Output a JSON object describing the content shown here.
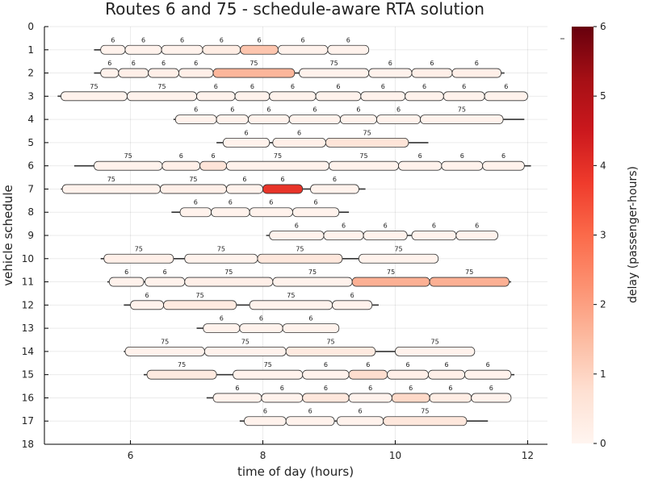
{
  "chart_data": {
    "type": "gantt",
    "title": "Routes 6 and 75 - schedule-aware RTA solution",
    "xlabel": "time of day (hours)",
    "ylabel": "vehicle schedule",
    "colorbar_label": "delay (passenger-hours)",
    "xlim": [
      4.7,
      12.3
    ],
    "ylim": [
      0,
      18
    ],
    "x_ticks": [
      6,
      8,
      10,
      12
    ],
    "y_ticks": [
      0,
      1,
      2,
      3,
      4,
      5,
      6,
      7,
      8,
      9,
      10,
      11,
      12,
      13,
      14,
      15,
      16,
      17,
      18
    ],
    "color_range": [
      0,
      6
    ],
    "color_ticks": [
      0,
      1,
      2,
      3,
      4,
      5,
      6
    ],
    "colormap": [
      "#fff5f0",
      "#fee0d2",
      "#fcbba1",
      "#fc9272",
      "#fb6a4a",
      "#ef3b2c",
      "#cb181d",
      "#a50f15",
      "#67000d"
    ],
    "grid": true,
    "schedules": [
      {
        "vehicle": 1,
        "line": [
          5.45,
          9.6
        ],
        "trips": [
          {
            "route": "6",
            "start": 5.55,
            "end": 5.92,
            "delay": 0.1
          },
          {
            "route": "6",
            "start": 5.92,
            "end": 6.47,
            "delay": 0.1
          },
          {
            "route": "6",
            "start": 6.47,
            "end": 7.09,
            "delay": 0.1
          },
          {
            "route": "6",
            "start": 7.09,
            "end": 7.66,
            "delay": 0.3
          },
          {
            "route": "6",
            "start": 7.66,
            "end": 8.23,
            "delay": 1.3
          },
          {
            "route": "6",
            "start": 8.23,
            "end": 8.98,
            "delay": 0.1
          },
          {
            "route": "6",
            "start": 8.98,
            "end": 9.6,
            "delay": 0.1
          }
        ]
      },
      {
        "vehicle": 2,
        "line": [
          5.45,
          11.65
        ],
        "trips": [
          {
            "route": "6",
            "start": 5.55,
            "end": 5.82,
            "delay": 0.1
          },
          {
            "route": "6",
            "start": 5.82,
            "end": 6.27,
            "delay": 0.2
          },
          {
            "route": "6",
            "start": 6.27,
            "end": 6.73,
            "delay": 0.2
          },
          {
            "route": "6",
            "start": 6.73,
            "end": 7.25,
            "delay": 0.2
          },
          {
            "route": "75",
            "start": 7.25,
            "end": 8.48,
            "delay": 1.6
          },
          {
            "route": "75",
            "start": 8.55,
            "end": 9.6,
            "delay": 0.1
          },
          {
            "route": "6",
            "start": 9.6,
            "end": 10.25,
            "delay": 0.1
          },
          {
            "route": "6",
            "start": 10.25,
            "end": 10.86,
            "delay": 0.2
          },
          {
            "route": "6",
            "start": 10.86,
            "end": 11.6,
            "delay": 0.2
          }
        ]
      },
      {
        "vehicle": 3,
        "line": [
          4.9,
          12.0
        ],
        "trips": [
          {
            "route": "75",
            "start": 4.95,
            "end": 5.95,
            "delay": 0.1
          },
          {
            "route": "75",
            "start": 5.95,
            "end": 7.0,
            "delay": 0.1
          },
          {
            "route": "6",
            "start": 7.0,
            "end": 7.58,
            "delay": 0.1
          },
          {
            "route": "6",
            "start": 7.58,
            "end": 8.1,
            "delay": 0.1
          },
          {
            "route": "6",
            "start": 8.1,
            "end": 8.8,
            "delay": 0.1
          },
          {
            "route": "6",
            "start": 8.8,
            "end": 9.48,
            "delay": 0.1
          },
          {
            "route": "6",
            "start": 9.48,
            "end": 10.15,
            "delay": 0.1
          },
          {
            "route": "6",
            "start": 10.15,
            "end": 10.73,
            "delay": 0.1
          },
          {
            "route": "6",
            "start": 10.73,
            "end": 11.35,
            "delay": 0.1
          },
          {
            "route": "6",
            "start": 11.35,
            "end": 12.0,
            "delay": 0.1
          }
        ]
      },
      {
        "vehicle": 4,
        "line": [
          6.65,
          11.95
        ],
        "trips": [
          {
            "route": "6",
            "start": 6.68,
            "end": 7.3,
            "delay": 0.1
          },
          {
            "route": "6",
            "start": 7.3,
            "end": 7.78,
            "delay": 0.1
          },
          {
            "route": "6",
            "start": 7.78,
            "end": 8.4,
            "delay": 0.1
          },
          {
            "route": "6",
            "start": 8.4,
            "end": 9.17,
            "delay": 0.1
          },
          {
            "route": "6",
            "start": 9.17,
            "end": 9.72,
            "delay": 0.1
          },
          {
            "route": "6",
            "start": 9.72,
            "end": 10.38,
            "delay": 0.1
          },
          {
            "route": "75",
            "start": 10.38,
            "end": 11.63,
            "delay": 0.1
          }
        ]
      },
      {
        "vehicle": 5,
        "line": [
          7.3,
          10.5
        ],
        "trips": [
          {
            "route": "6",
            "start": 7.4,
            "end": 8.1,
            "delay": 0.1
          },
          {
            "route": "6",
            "start": 8.15,
            "end": 8.95,
            "delay": 0.2
          },
          {
            "route": "75",
            "start": 8.95,
            "end": 10.2,
            "delay": 0.6
          }
        ]
      },
      {
        "vehicle": 6,
        "line": [
          5.15,
          12.05
        ],
        "trips": [
          {
            "route": "75",
            "start": 5.45,
            "end": 6.48,
            "delay": 0.1
          },
          {
            "route": "6",
            "start": 6.48,
            "end": 7.05,
            "delay": 0.2
          },
          {
            "route": "6",
            "start": 7.05,
            "end": 7.45,
            "delay": 0.6
          },
          {
            "route": "75",
            "start": 7.45,
            "end": 9.0,
            "delay": 0.1
          },
          {
            "route": "75",
            "start": 9.0,
            "end": 10.05,
            "delay": 0.1
          },
          {
            "route": "6",
            "start": 10.05,
            "end": 10.7,
            "delay": 0.1
          },
          {
            "route": "6",
            "start": 10.7,
            "end": 11.32,
            "delay": 0.1
          },
          {
            "route": "6",
            "start": 11.32,
            "end": 11.95,
            "delay": 0.1
          }
        ]
      },
      {
        "vehicle": 7,
        "line": [
          4.95,
          9.55
        ],
        "trips": [
          {
            "route": "75",
            "start": 4.97,
            "end": 6.45,
            "delay": 0.1
          },
          {
            "route": "75",
            "start": 6.45,
            "end": 7.45,
            "delay": 0.2
          },
          {
            "route": "6",
            "start": 7.45,
            "end": 8.0,
            "delay": 0.1
          },
          {
            "route": "6",
            "start": 8.0,
            "end": 8.6,
            "delay": 3.9
          },
          {
            "route": "6",
            "start": 8.72,
            "end": 9.45,
            "delay": 0.1
          }
        ]
      },
      {
        "vehicle": 8,
        "line": [
          6.62,
          9.3
        ],
        "trips": [
          {
            "route": "6",
            "start": 6.75,
            "end": 7.22,
            "delay": 0.1
          },
          {
            "route": "6",
            "start": 7.22,
            "end": 7.8,
            "delay": 0.1
          },
          {
            "route": "6",
            "start": 7.8,
            "end": 8.45,
            "delay": 0.1
          },
          {
            "route": "6",
            "start": 8.45,
            "end": 9.15,
            "delay": 0.1
          }
        ]
      },
      {
        "vehicle": 9,
        "line": [
          8.05,
          11.55
        ],
        "trips": [
          {
            "route": "6",
            "start": 8.1,
            "end": 8.92,
            "delay": 0.1
          },
          {
            "route": "6",
            "start": 8.92,
            "end": 9.52,
            "delay": 0.1
          },
          {
            "route": "6",
            "start": 9.52,
            "end": 10.18,
            "delay": 0.1
          },
          {
            "route": "6",
            "start": 10.25,
            "end": 10.92,
            "delay": 0.1
          },
          {
            "route": "6",
            "start": 10.92,
            "end": 11.55,
            "delay": 0.1
          }
        ]
      },
      {
        "vehicle": 10,
        "line": [
          5.55,
          10.65
        ],
        "trips": [
          {
            "route": "75",
            "start": 5.6,
            "end": 6.65,
            "delay": 0.2
          },
          {
            "route": "75",
            "start": 6.82,
            "end": 7.92,
            "delay": 0.1
          },
          {
            "route": "75",
            "start": 7.92,
            "end": 9.2,
            "delay": 0.5
          },
          {
            "route": "75",
            "start": 9.45,
            "end": 10.65,
            "delay": 0.1
          }
        ]
      },
      {
        "vehicle": 11,
        "line": [
          5.65,
          11.75
        ],
        "trips": [
          {
            "route": "6",
            "start": 5.68,
            "end": 6.2,
            "delay": 0.1
          },
          {
            "route": "6",
            "start": 6.22,
            "end": 6.82,
            "delay": 0.1
          },
          {
            "route": "75",
            "start": 6.82,
            "end": 8.15,
            "delay": 0.2
          },
          {
            "route": "75",
            "start": 8.15,
            "end": 9.35,
            "delay": 0.1
          },
          {
            "route": "75",
            "start": 9.35,
            "end": 10.52,
            "delay": 1.7
          },
          {
            "route": "75",
            "start": 10.52,
            "end": 11.72,
            "delay": 1.7
          }
        ]
      },
      {
        "vehicle": 12,
        "line": [
          5.9,
          9.75
        ],
        "trips": [
          {
            "route": "6",
            "start": 6.0,
            "end": 6.5,
            "delay": 0.1
          },
          {
            "route": "75",
            "start": 6.5,
            "end": 7.6,
            "delay": 0.4
          },
          {
            "route": "75",
            "start": 7.8,
            "end": 9.05,
            "delay": 0.1
          },
          {
            "route": "6",
            "start": 9.05,
            "end": 9.65,
            "delay": 0.1
          }
        ]
      },
      {
        "vehicle": 13,
        "line": [
          7.0,
          9.15
        ],
        "trips": [
          {
            "route": "6",
            "start": 7.1,
            "end": 7.65,
            "delay": 0.1
          },
          {
            "route": "6",
            "start": 7.65,
            "end": 8.3,
            "delay": 0.1
          },
          {
            "route": "6",
            "start": 8.3,
            "end": 9.15,
            "delay": 0.1
          }
        ]
      },
      {
        "vehicle": 14,
        "line": [
          5.9,
          11.2
        ],
        "trips": [
          {
            "route": "75",
            "start": 5.92,
            "end": 7.12,
            "delay": 0.1
          },
          {
            "route": "75",
            "start": 7.12,
            "end": 8.35,
            "delay": 0.1
          },
          {
            "route": "75",
            "start": 8.35,
            "end": 9.7,
            "delay": 0.4
          },
          {
            "route": "75",
            "start": 10.0,
            "end": 11.2,
            "delay": 0.1
          }
        ]
      },
      {
        "vehicle": 15,
        "line": [
          6.2,
          11.8
        ],
        "trips": [
          {
            "route": "75",
            "start": 6.25,
            "end": 7.3,
            "delay": 0.4
          },
          {
            "route": "75",
            "start": 7.55,
            "end": 8.6,
            "delay": 0.1
          },
          {
            "route": "6",
            "start": 8.6,
            "end": 9.3,
            "delay": 0.1
          },
          {
            "route": "6",
            "start": 9.3,
            "end": 9.88,
            "delay": 0.8
          },
          {
            "route": "6",
            "start": 9.88,
            "end": 10.5,
            "delay": 0.2
          },
          {
            "route": "6",
            "start": 10.5,
            "end": 11.05,
            "delay": 0.2
          },
          {
            "route": "6",
            "start": 11.05,
            "end": 11.75,
            "delay": 0.1
          }
        ]
      },
      {
        "vehicle": 16,
        "line": [
          7.15,
          11.75
        ],
        "trips": [
          {
            "route": "6",
            "start": 7.25,
            "end": 7.98,
            "delay": 0.1
          },
          {
            "route": "6",
            "start": 7.98,
            "end": 8.6,
            "delay": 0.1
          },
          {
            "route": "6",
            "start": 8.6,
            "end": 9.3,
            "delay": 0.5
          },
          {
            "route": "6",
            "start": 9.3,
            "end": 9.95,
            "delay": 0.1
          },
          {
            "route": "6",
            "start": 9.95,
            "end": 10.52,
            "delay": 0.9
          },
          {
            "route": "6",
            "start": 10.52,
            "end": 11.15,
            "delay": 0.3
          },
          {
            "route": "6",
            "start": 11.15,
            "end": 11.75,
            "delay": 0.1
          }
        ]
      },
      {
        "vehicle": 17,
        "line": [
          7.65,
          11.4
        ],
        "trips": [
          {
            "route": "6",
            "start": 7.72,
            "end": 8.35,
            "delay": 0.1
          },
          {
            "route": "6",
            "start": 8.35,
            "end": 9.08,
            "delay": 0.1
          },
          {
            "route": "6",
            "start": 9.12,
            "end": 9.82,
            "delay": 0.1
          },
          {
            "route": "75",
            "start": 9.82,
            "end": 11.08,
            "delay": 0.5
          }
        ]
      }
    ]
  }
}
